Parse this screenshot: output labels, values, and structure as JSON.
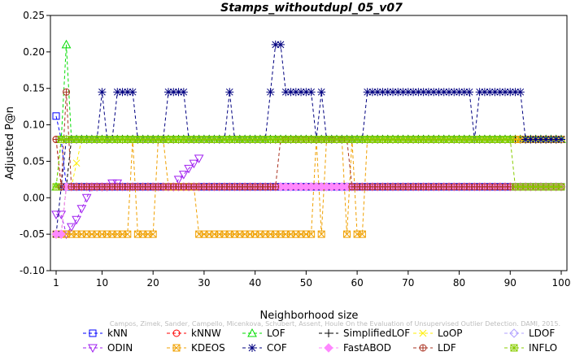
{
  "chart_data": {
    "type": "line",
    "title": "Stamps_withoutdupl_05_v07",
    "xlabel": "Neighborhood size",
    "ylabel": "Adjusted P@n",
    "xlim": [
      1,
      100
    ],
    "ylim": [
      -0.1,
      0.25
    ],
    "xticks": [
      1,
      10,
      20,
      30,
      40,
      50,
      60,
      70,
      80,
      90,
      100
    ],
    "yticks": [
      "-0.10",
      "-0.05",
      "0.00",
      "0.05",
      "0.10",
      "0.15",
      "0.20",
      "0.25"
    ],
    "grid": false,
    "legend_position": "bottom",
    "watermark": "Campos, Zimek, Sander, Campello, Micenkova, Schubert, Assent, Houle On the Evaluation of Unsupervised Outlier Detection. DAMI, 2015.",
    "series": [
      {
        "name": "kNN",
        "color": "#0000ff",
        "marker": "square",
        "segments": [
          [
            [
              1,
              0.112
            ],
            [
              2,
              0.08
            ],
            [
              3,
              0.015
            ],
            [
              100,
              0.015
            ]
          ]
        ]
      },
      {
        "name": "kNNW",
        "color": "#ff0000",
        "marker": "circle",
        "segments": [
          [
            [
              1,
              0.08
            ],
            [
              2,
              0.015
            ],
            [
              3,
              0.015
            ],
            [
              100,
              0.015
            ]
          ]
        ]
      },
      {
        "name": "LOF",
        "color": "#00dd00",
        "marker": "triangle-up",
        "segments": [
          [
            [
              1,
              0.015
            ],
            [
              2,
              0.08
            ],
            [
              3,
              0.21
            ],
            [
              4,
              0.08
            ],
            [
              100,
              0.08
            ]
          ]
        ]
      },
      {
        "name": "SimplifiedLOF",
        "color": "#000000",
        "marker": "plus",
        "segments": [
          [
            [
              1,
              -0.05
            ],
            [
              2,
              -0.05
            ],
            [
              3,
              0.015
            ],
            [
              4,
              0.08
            ],
            [
              100,
              0.08
            ]
          ]
        ]
      },
      {
        "name": "LoOP",
        "color": "#ffee00",
        "marker": "cross",
        "segments": [
          [
            [
              1,
              -0.05
            ],
            [
              2,
              -0.05
            ],
            [
              3,
              0.015
            ],
            [
              4,
              0.015
            ],
            [
              6,
              0.08
            ],
            [
              100,
              0.08
            ]
          ]
        ]
      },
      {
        "name": "LDOF",
        "color": "#b0a0ff",
        "marker": "diamond",
        "segments": [
          [
            [
              1,
              -0.05
            ],
            [
              2,
              -0.05
            ],
            [
              3,
              0.015
            ],
            [
              100,
              0.015
            ]
          ]
        ]
      },
      {
        "name": "ODIN",
        "color": "#a020f0",
        "marker": "triangle-down",
        "segments": [
          [
            [
              1,
              -0.023
            ],
            [
              2,
              -0.023
            ],
            [
              3,
              -0.05
            ],
            [
              4,
              -0.04
            ],
            [
              5,
              -0.03
            ],
            [
              6,
              -0.015
            ],
            [
              7,
              0.0
            ],
            [
              8,
              0.015
            ],
            [
              11,
              0.015
            ],
            [
              12,
              0.02
            ],
            [
              13,
              0.02
            ]
          ],
          [
            [
              24,
              0.015
            ],
            [
              25,
              0.025
            ],
            [
              26,
              0.032
            ],
            [
              27,
              0.04
            ],
            [
              28,
              0.047
            ],
            [
              29,
              0.054
            ]
          ]
        ]
      },
      {
        "name": "KDEOS",
        "color": "#f0a000",
        "marker": "square-x",
        "segments": [
          [
            [
              1,
              -0.05
            ],
            [
              4,
              -0.05
            ],
            [
              5,
              -0.05
            ],
            [
              6,
              -0.05
            ],
            [
              7,
              -0.05
            ],
            [
              15,
              -0.05
            ],
            [
              16,
              0.08
            ],
            [
              17,
              -0.05
            ],
            [
              18,
              -0.05
            ],
            [
              20,
              -0.05
            ],
            [
              21,
              0.08
            ],
            [
              22,
              0.08
            ],
            [
              23,
              0.015
            ],
            [
              28,
              0.015
            ],
            [
              29,
              -0.05
            ],
            [
              51,
              -0.05
            ],
            [
              52,
              0.08
            ],
            [
              53,
              -0.05
            ],
            [
              54,
              0.08
            ],
            [
              57,
              0.08
            ],
            [
              58,
              -0.05
            ],
            [
              59,
              0.08
            ],
            [
              60,
              -0.05
            ],
            [
              61,
              -0.05
            ],
            [
              62,
              0.08
            ],
            [
              100,
              0.08
            ]
          ]
        ]
      },
      {
        "name": "COF",
        "color": "#000080",
        "marker": "asterisk",
        "segments": [
          [
            [
              1,
              -0.05
            ],
            [
              2,
              0.015
            ],
            [
              3,
              0.08
            ],
            [
              9,
              0.08
            ],
            [
              10,
              0.145
            ],
            [
              11,
              0.08
            ],
            [
              12,
              0.08
            ],
            [
              13,
              0.145
            ],
            [
              16,
              0.145
            ],
            [
              17,
              0.08
            ],
            [
              22,
              0.08
            ],
            [
              23,
              0.145
            ],
            [
              26,
              0.145
            ],
            [
              27,
              0.08
            ],
            [
              34,
              0.08
            ],
            [
              35,
              0.145
            ],
            [
              36,
              0.08
            ],
            [
              42,
              0.08
            ],
            [
              43,
              0.145
            ],
            [
              44,
              0.21
            ],
            [
              45,
              0.21
            ],
            [
              46,
              0.145
            ],
            [
              51,
              0.145
            ],
            [
              52,
              0.08
            ],
            [
              53,
              0.145
            ],
            [
              54,
              0.08
            ],
            [
              61,
              0.08
            ],
            [
              62,
              0.145
            ],
            [
              82,
              0.145
            ],
            [
              83,
              0.08
            ],
            [
              84,
              0.145
            ],
            [
              92,
              0.145
            ],
            [
              93,
              0.08
            ],
            [
              100,
              0.08
            ]
          ]
        ]
      },
      {
        "name": "FastABOD",
        "color": "#ff88ff",
        "marker": "diamond-filled",
        "segments": [
          [
            [
              1,
              -0.05
            ],
            [
              2,
              -0.05
            ],
            [
              3,
              0.015
            ],
            [
              100,
              0.015
            ]
          ]
        ]
      },
      {
        "name": "LDF",
        "color": "#aa3322",
        "marker": "circle-plus",
        "segments": [
          [
            [
              1,
              0.08
            ],
            [
              2,
              0.015
            ],
            [
              3,
              0.145
            ],
            [
              4,
              0.015
            ],
            [
              44,
              0.015
            ],
            [
              45,
              0.08
            ],
            [
              58,
              0.08
            ],
            [
              59,
              0.015
            ],
            [
              100,
              0.015
            ]
          ]
        ]
      },
      {
        "name": "INFLO",
        "color": "#88cc00",
        "marker": "square-star",
        "segments": [
          [
            [
              1,
              0.015
            ],
            [
              2,
              0.08
            ],
            [
              90,
              0.08
            ],
            [
              91,
              0.015
            ],
            [
              100,
              0.015
            ]
          ]
        ]
      }
    ]
  }
}
